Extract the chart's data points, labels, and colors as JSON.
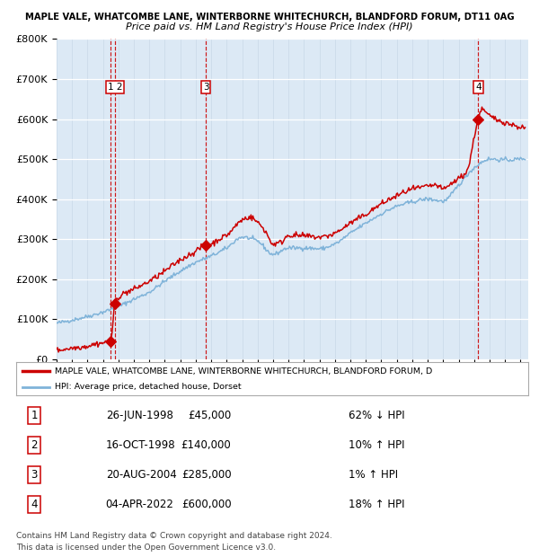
{
  "title1": "MAPLE VALE, WHATCOMBE LANE, WINTERBORNE WHITECHURCH, BLANDFORD FORUM, DT11 0AG",
  "title2": "Price paid vs. HM Land Registry's House Price Index (HPI)",
  "legend_label1": "MAPLE VALE, WHATCOMBE LANE, WINTERBORNE WHITECHURCH, BLANDFORD FORUM, D",
  "legend_label2": "HPI: Average price, detached house, Dorset",
  "footer1": "Contains HM Land Registry data © Crown copyright and database right 2024.",
  "footer2": "This data is licensed under the Open Government Licence v3.0.",
  "transactions": [
    {
      "num": 1,
      "date": "26-JUN-1998",
      "price": "£45,000",
      "pct": "62% ↓ HPI"
    },
    {
      "num": 2,
      "date": "16-OCT-1998",
      "price": "£140,000",
      "pct": "10% ↑ HPI"
    },
    {
      "num": 3,
      "date": "20-AUG-2004",
      "price": "£285,000",
      "pct": "1% ↑ HPI"
    },
    {
      "num": 4,
      "date": "04-APR-2022",
      "price": "£600,000",
      "pct": "18% ↑ HPI"
    }
  ],
  "bg_color": "#dce9f5",
  "line_color_red": "#cc0000",
  "line_color_blue": "#7fb3d9",
  "point_color": "#cc0000",
  "vline_color": "#cc0000",
  "ylim": [
    0,
    800000
  ],
  "xlim": [
    1995.0,
    2025.5
  ],
  "yticks": [
    0,
    100000,
    200000,
    300000,
    400000,
    500000,
    600000,
    700000,
    800000
  ],
  "ytick_labels": [
    "£0",
    "£100K",
    "£200K",
    "£300K",
    "£400K",
    "£500K",
    "£600K",
    "£700K",
    "£800K"
  ],
  "xticks": [
    1995,
    1996,
    1997,
    1998,
    1999,
    2000,
    2001,
    2002,
    2003,
    2004,
    2005,
    2006,
    2007,
    2008,
    2009,
    2010,
    2011,
    2012,
    2013,
    2014,
    2015,
    2016,
    2017,
    2018,
    2019,
    2020,
    2021,
    2022,
    2023,
    2024,
    2025
  ]
}
